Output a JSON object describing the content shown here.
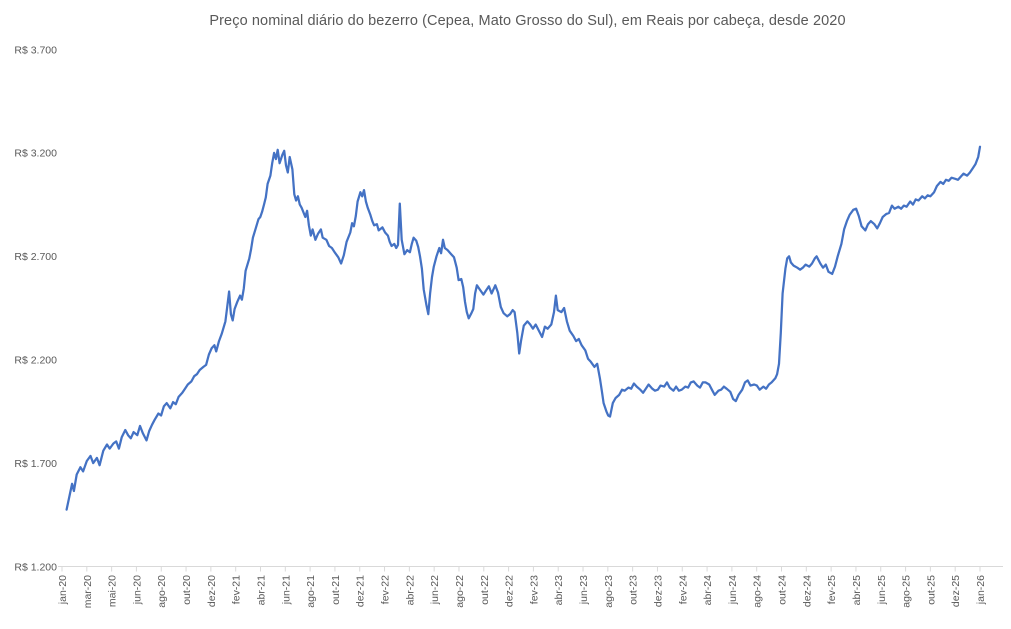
{
  "chart_data": {
    "type": "line",
    "title": "Preço nominal diário do bezerro (Cepea, Mato Grosso do Sul), em Reais por cabeça, desde 2020",
    "xlabel": "",
    "ylabel": "",
    "series_name": "Preço nominal diário do bezerro (R$ por cabeça)",
    "line_color": "#4472C4",
    "text_color": "#595959",
    "axis_color": "#D9D9D9",
    "grid": "off",
    "legend": "none",
    "y_axis": {
      "min": 1200,
      "max": 3700,
      "tick_step": 500,
      "tick_labels": [
        "R$ 1.200",
        "R$ 1.700",
        "R$ 2.200",
        "R$ 2.700",
        "R$ 3.200",
        "R$ 3.700"
      ]
    },
    "x_axis": {
      "tick_labels": [
        "jan-20",
        "mar-20",
        "mai-20",
        "jun-20",
        "ago-20",
        "out-20",
        "dez-20",
        "fev-21",
        "abr-21",
        "jun-21",
        "ago-21",
        "out-21",
        "dez-21",
        "fev-22",
        "abr-22",
        "jun-22",
        "ago-22",
        "out-22",
        "dez-22",
        "fev-23",
        "abr-23",
        "jun-23",
        "ago-23",
        "out-23",
        "dez-23",
        "fev-24",
        "abr-24",
        "jun-24",
        "ago-24",
        "out-24",
        "dez-24",
        "fev-25",
        "abr-25",
        "jun-25",
        "ago-25",
        "out-25",
        "dez-25",
        "jan-26"
      ]
    },
    "key_points": {
      "start": {
        "label": "jan-20",
        "value": 1475
      },
      "peak_2021": {
        "label": "abr/mai-21",
        "value": 3215
      },
      "low_2023": {
        "label": "ago-23",
        "value": 1925
      },
      "end": {
        "label": "jan-26",
        "value": 3230
      }
    },
    "points_note": "Daily series sampled; pos = fraction along x-axis from jan-20 tick (0) to jan-26 tick (1), value in R$ per head",
    "points": [
      [
        0.005,
        1475
      ],
      [
        0.009,
        1560
      ],
      [
        0.011,
        1600
      ],
      [
        0.013,
        1565
      ],
      [
        0.016,
        1645
      ],
      [
        0.02,
        1680
      ],
      [
        0.023,
        1660
      ],
      [
        0.027,
        1710
      ],
      [
        0.031,
        1735
      ],
      [
        0.034,
        1700
      ],
      [
        0.038,
        1725
      ],
      [
        0.041,
        1690
      ],
      [
        0.045,
        1760
      ],
      [
        0.049,
        1790
      ],
      [
        0.052,
        1770
      ],
      [
        0.056,
        1795
      ],
      [
        0.059,
        1805
      ],
      [
        0.062,
        1770
      ],
      [
        0.065,
        1825
      ],
      [
        0.069,
        1860
      ],
      [
        0.072,
        1835
      ],
      [
        0.075,
        1820
      ],
      [
        0.078,
        1850
      ],
      [
        0.082,
        1835
      ],
      [
        0.085,
        1880
      ],
      [
        0.088,
        1845
      ],
      [
        0.092,
        1810
      ],
      [
        0.095,
        1855
      ],
      [
        0.098,
        1885
      ],
      [
        0.101,
        1910
      ],
      [
        0.105,
        1940
      ],
      [
        0.108,
        1930
      ],
      [
        0.111,
        1975
      ],
      [
        0.114,
        1990
      ],
      [
        0.118,
        1965
      ],
      [
        0.121,
        1995
      ],
      [
        0.124,
        1985
      ],
      [
        0.127,
        2020
      ],
      [
        0.131,
        2040
      ],
      [
        0.134,
        2060
      ],
      [
        0.137,
        2080
      ],
      [
        0.141,
        2095
      ],
      [
        0.144,
        2120
      ],
      [
        0.147,
        2130
      ],
      [
        0.15,
        2150
      ],
      [
        0.154,
        2165
      ],
      [
        0.157,
        2175
      ],
      [
        0.16,
        2225
      ],
      [
        0.163,
        2255
      ],
      [
        0.166,
        2270
      ],
      [
        0.168,
        2240
      ],
      [
        0.171,
        2290
      ],
      [
        0.174,
        2325
      ],
      [
        0.178,
        2385
      ],
      [
        0.18,
        2455
      ],
      [
        0.182,
        2530
      ],
      [
        0.184,
        2420
      ],
      [
        0.186,
        2390
      ],
      [
        0.188,
        2445
      ],
      [
        0.191,
        2480
      ],
      [
        0.194,
        2510
      ],
      [
        0.196,
        2490
      ],
      [
        0.198,
        2545
      ],
      [
        0.2,
        2630
      ],
      [
        0.204,
        2690
      ],
      [
        0.206,
        2735
      ],
      [
        0.208,
        2790
      ],
      [
        0.211,
        2835
      ],
      [
        0.214,
        2880
      ],
      [
        0.216,
        2890
      ],
      [
        0.218,
        2915
      ],
      [
        0.22,
        2950
      ],
      [
        0.222,
        2985
      ],
      [
        0.224,
        3050
      ],
      [
        0.227,
        3090
      ],
      [
        0.229,
        3150
      ],
      [
        0.231,
        3200
      ],
      [
        0.233,
        3170
      ],
      [
        0.235,
        3215
      ],
      [
        0.237,
        3150
      ],
      [
        0.24,
        3190
      ],
      [
        0.242,
        3210
      ],
      [
        0.244,
        3140
      ],
      [
        0.246,
        3105
      ],
      [
        0.248,
        3180
      ],
      [
        0.251,
        3120
      ],
      [
        0.253,
        3000
      ],
      [
        0.255,
        2970
      ],
      [
        0.257,
        2990
      ],
      [
        0.259,
        2950
      ],
      [
        0.261,
        2935
      ],
      [
        0.265,
        2890
      ],
      [
        0.267,
        2920
      ],
      [
        0.269,
        2850
      ],
      [
        0.271,
        2800
      ],
      [
        0.273,
        2830
      ],
      [
        0.276,
        2780
      ],
      [
        0.279,
        2810
      ],
      [
        0.282,
        2830
      ],
      [
        0.284,
        2790
      ],
      [
        0.288,
        2780
      ],
      [
        0.291,
        2750
      ],
      [
        0.294,
        2740
      ],
      [
        0.297,
        2720
      ],
      [
        0.301,
        2695
      ],
      [
        0.304,
        2665
      ],
      [
        0.307,
        2705
      ],
      [
        0.31,
        2770
      ],
      [
        0.314,
        2815
      ],
      [
        0.316,
        2860
      ],
      [
        0.318,
        2845
      ],
      [
        0.32,
        2895
      ],
      [
        0.322,
        2965
      ],
      [
        0.325,
        3010
      ],
      [
        0.327,
        2990
      ],
      [
        0.329,
        3020
      ],
      [
        0.331,
        2965
      ],
      [
        0.333,
        2935
      ],
      [
        0.336,
        2900
      ],
      [
        0.338,
        2870
      ],
      [
        0.34,
        2850
      ],
      [
        0.343,
        2855
      ],
      [
        0.345,
        2825
      ],
      [
        0.349,
        2840
      ],
      [
        0.352,
        2815
      ],
      [
        0.355,
        2800
      ],
      [
        0.357,
        2770
      ],
      [
        0.359,
        2750
      ],
      [
        0.362,
        2760
      ],
      [
        0.364,
        2740
      ],
      [
        0.366,
        2755
      ],
      [
        0.368,
        2955
      ],
      [
        0.37,
        2780
      ],
      [
        0.373,
        2710
      ],
      [
        0.376,
        2730
      ],
      [
        0.379,
        2720
      ],
      [
        0.381,
        2760
      ],
      [
        0.383,
        2790
      ],
      [
        0.386,
        2775
      ],
      [
        0.388,
        2745
      ],
      [
        0.39,
        2700
      ],
      [
        0.392,
        2640
      ],
      [
        0.394,
        2540
      ],
      [
        0.397,
        2465
      ],
      [
        0.399,
        2420
      ],
      [
        0.401,
        2520
      ],
      [
        0.403,
        2600
      ],
      [
        0.405,
        2650
      ],
      [
        0.408,
        2700
      ],
      [
        0.411,
        2740
      ],
      [
        0.413,
        2715
      ],
      [
        0.415,
        2780
      ],
      [
        0.417,
        2740
      ],
      [
        0.42,
        2730
      ],
      [
        0.424,
        2710
      ],
      [
        0.427,
        2695
      ],
      [
        0.43,
        2645
      ],
      [
        0.432,
        2585
      ],
      [
        0.435,
        2590
      ],
      [
        0.437,
        2550
      ],
      [
        0.439,
        2480
      ],
      [
        0.441,
        2430
      ],
      [
        0.443,
        2400
      ],
      [
        0.446,
        2425
      ],
      [
        0.448,
        2445
      ],
      [
        0.45,
        2520
      ],
      [
        0.452,
        2560
      ],
      [
        0.455,
        2540
      ],
      [
        0.459,
        2515
      ],
      [
        0.462,
        2535
      ],
      [
        0.465,
        2555
      ],
      [
        0.468,
        2520
      ],
      [
        0.472,
        2560
      ],
      [
        0.475,
        2525
      ],
      [
        0.478,
        2455
      ],
      [
        0.481,
        2425
      ],
      [
        0.485,
        2410
      ],
      [
        0.488,
        2420
      ],
      [
        0.491,
        2440
      ],
      [
        0.493,
        2430
      ],
      [
        0.496,
        2330
      ],
      [
        0.498,
        2230
      ],
      [
        0.5,
        2290
      ],
      [
        0.503,
        2365
      ],
      [
        0.507,
        2385
      ],
      [
        0.51,
        2370
      ],
      [
        0.513,
        2350
      ],
      [
        0.516,
        2370
      ],
      [
        0.52,
        2335
      ],
      [
        0.523,
        2310
      ],
      [
        0.526,
        2360
      ],
      [
        0.529,
        2350
      ],
      [
        0.533,
        2370
      ],
      [
        0.536,
        2430
      ],
      [
        0.538,
        2510
      ],
      [
        0.54,
        2440
      ],
      [
        0.544,
        2430
      ],
      [
        0.547,
        2450
      ],
      [
        0.55,
        2385
      ],
      [
        0.553,
        2340
      ],
      [
        0.557,
        2315
      ],
      [
        0.56,
        2290
      ],
      [
        0.563,
        2300
      ],
      [
        0.566,
        2270
      ],
      [
        0.57,
        2245
      ],
      [
        0.573,
        2205
      ],
      [
        0.576,
        2190
      ],
      [
        0.58,
        2165
      ],
      [
        0.583,
        2180
      ],
      [
        0.586,
        2110
      ],
      [
        0.588,
        2050
      ],
      [
        0.59,
        1990
      ],
      [
        0.593,
        1950
      ],
      [
        0.595,
        1930
      ],
      [
        0.597,
        1925
      ],
      [
        0.6,
        1990
      ],
      [
        0.603,
        2015
      ],
      [
        0.607,
        2030
      ],
      [
        0.61,
        2055
      ],
      [
        0.613,
        2050
      ],
      [
        0.617,
        2065
      ],
      [
        0.62,
        2060
      ],
      [
        0.623,
        2085
      ],
      [
        0.626,
        2070
      ],
      [
        0.63,
        2055
      ],
      [
        0.633,
        2040
      ],
      [
        0.636,
        2060
      ],
      [
        0.639,
        2080
      ],
      [
        0.643,
        2060
      ],
      [
        0.646,
        2050
      ],
      [
        0.649,
        2055
      ],
      [
        0.652,
        2075
      ],
      [
        0.656,
        2070
      ],
      [
        0.659,
        2090
      ],
      [
        0.662,
        2065
      ],
      [
        0.666,
        2050
      ],
      [
        0.669,
        2070
      ],
      [
        0.672,
        2050
      ],
      [
        0.675,
        2055
      ],
      [
        0.679,
        2070
      ],
      [
        0.682,
        2065
      ],
      [
        0.685,
        2090
      ],
      [
        0.688,
        2095
      ],
      [
        0.692,
        2075
      ],
      [
        0.695,
        2065
      ],
      [
        0.698,
        2090
      ],
      [
        0.701,
        2090
      ],
      [
        0.705,
        2080
      ],
      [
        0.708,
        2055
      ],
      [
        0.711,
        2030
      ],
      [
        0.715,
        2050
      ],
      [
        0.718,
        2055
      ],
      [
        0.721,
        2070
      ],
      [
        0.724,
        2060
      ],
      [
        0.728,
        2045
      ],
      [
        0.731,
        2010
      ],
      [
        0.734,
        2000
      ],
      [
        0.737,
        2030
      ],
      [
        0.741,
        2055
      ],
      [
        0.744,
        2090
      ],
      [
        0.747,
        2100
      ],
      [
        0.75,
        2075
      ],
      [
        0.754,
        2080
      ],
      [
        0.757,
        2075
      ],
      [
        0.76,
        2055
      ],
      [
        0.764,
        2070
      ],
      [
        0.767,
        2060
      ],
      [
        0.77,
        2080
      ],
      [
        0.773,
        2090
      ],
      [
        0.777,
        2110
      ],
      [
        0.779,
        2130
      ],
      [
        0.781,
        2180
      ],
      [
        0.783,
        2330
      ],
      [
        0.785,
        2520
      ],
      [
        0.788,
        2640
      ],
      [
        0.79,
        2690
      ],
      [
        0.792,
        2700
      ],
      [
        0.794,
        2670
      ],
      [
        0.797,
        2655
      ],
      [
        0.801,
        2645
      ],
      [
        0.804,
        2635
      ],
      [
        0.807,
        2645
      ],
      [
        0.81,
        2660
      ],
      [
        0.814,
        2650
      ],
      [
        0.817,
        2665
      ],
      [
        0.82,
        2690
      ],
      [
        0.822,
        2700
      ],
      [
        0.826,
        2665
      ],
      [
        0.829,
        2645
      ],
      [
        0.832,
        2660
      ],
      [
        0.835,
        2625
      ],
      [
        0.839,
        2615
      ],
      [
        0.842,
        2650
      ],
      [
        0.845,
        2700
      ],
      [
        0.849,
        2760
      ],
      [
        0.852,
        2830
      ],
      [
        0.855,
        2870
      ],
      [
        0.858,
        2900
      ],
      [
        0.862,
        2925
      ],
      [
        0.865,
        2930
      ],
      [
        0.868,
        2895
      ],
      [
        0.871,
        2845
      ],
      [
        0.875,
        2825
      ],
      [
        0.878,
        2855
      ],
      [
        0.881,
        2870
      ],
      [
        0.885,
        2855
      ],
      [
        0.888,
        2835
      ],
      [
        0.891,
        2860
      ],
      [
        0.894,
        2890
      ],
      [
        0.898,
        2905
      ],
      [
        0.901,
        2910
      ],
      [
        0.904,
        2945
      ],
      [
        0.907,
        2930
      ],
      [
        0.911,
        2940
      ],
      [
        0.914,
        2930
      ],
      [
        0.917,
        2945
      ],
      [
        0.92,
        2940
      ],
      [
        0.924,
        2965
      ],
      [
        0.927,
        2950
      ],
      [
        0.93,
        2975
      ],
      [
        0.933,
        2970
      ],
      [
        0.937,
        2990
      ],
      [
        0.94,
        2980
      ],
      [
        0.943,
        2995
      ],
      [
        0.946,
        2990
      ],
      [
        0.95,
        3010
      ],
      [
        0.953,
        3040
      ],
      [
        0.957,
        3060
      ],
      [
        0.96,
        3050
      ],
      [
        0.963,
        3070
      ],
      [
        0.966,
        3065
      ],
      [
        0.969,
        3080
      ],
      [
        0.973,
        3075
      ],
      [
        0.976,
        3070
      ],
      [
        0.979,
        3085
      ],
      [
        0.982,
        3100
      ],
      [
        0.986,
        3090
      ],
      [
        0.989,
        3105
      ],
      [
        0.992,
        3125
      ],
      [
        0.995,
        3145
      ],
      [
        0.998,
        3180
      ],
      [
        1.0,
        3230
      ]
    ]
  }
}
